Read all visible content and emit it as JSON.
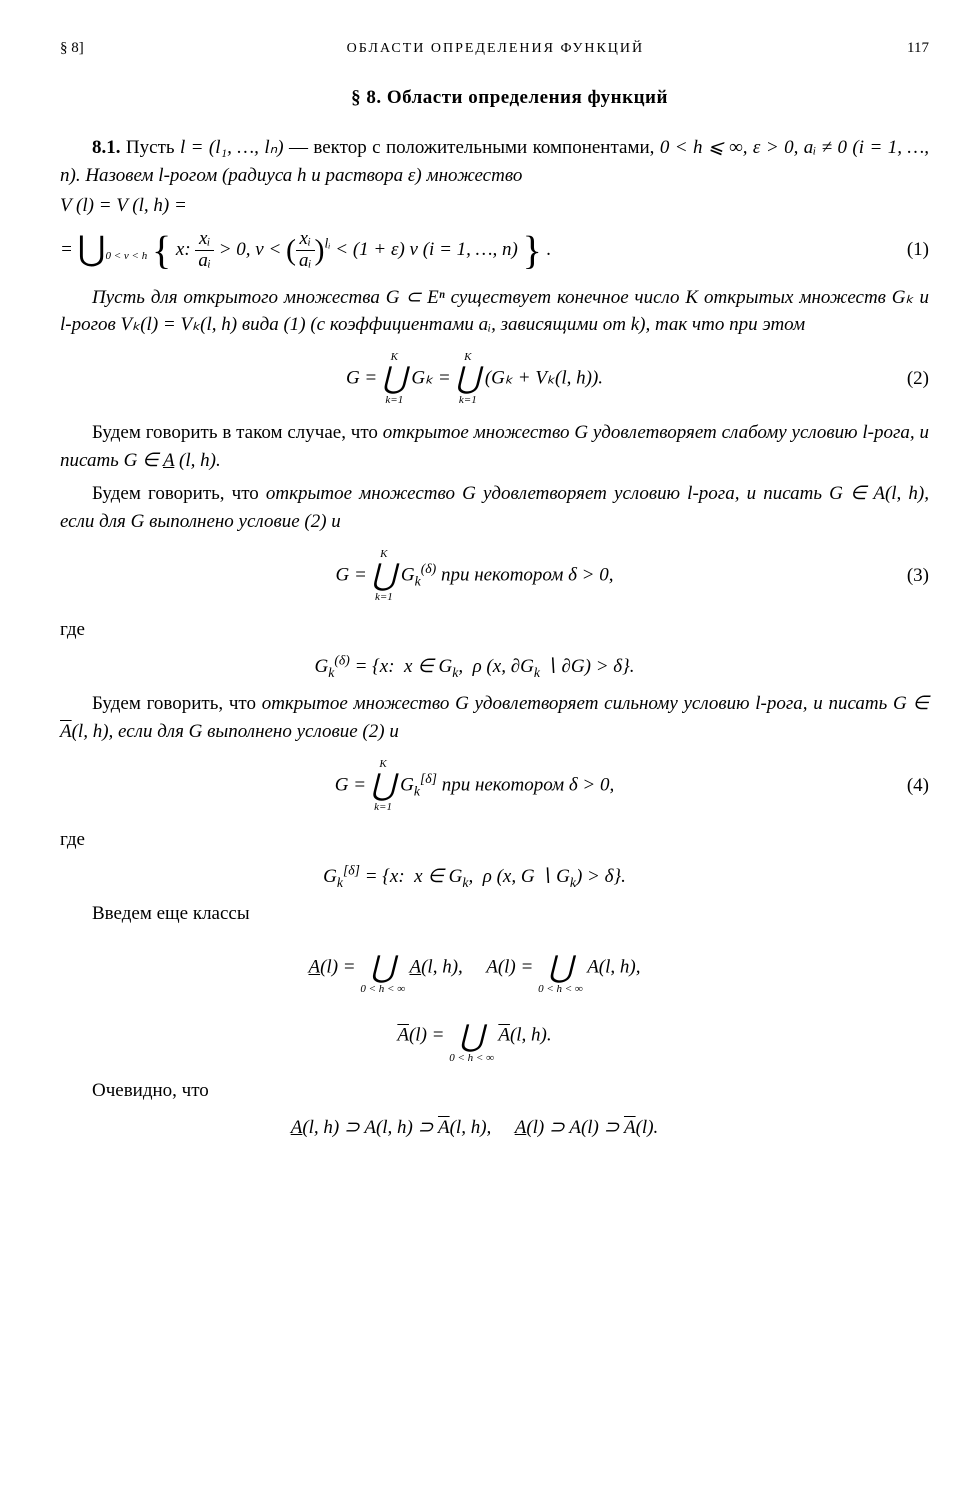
{
  "header": {
    "section_left": "§ 8]",
    "running_title": "ОБЛАСТИ ОПРЕДЕЛЕНИЯ ФУНКЦИЙ",
    "page_number": "117"
  },
  "section_title": "§ 8. Области определения функций",
  "para1": {
    "lead": "8.1.",
    "text1": " Пусть ",
    "eq_l": "l = (l₁, …, lₙ)",
    "text2": " — вектор с положительными компонентами, ",
    "cond": "0 < h ⩽ ∞, ε > 0, aᵢ ≠ 0 (i = 1, …, n).",
    "text3": " Назовем l-рогом (радиуса h и раствора ε) множество"
  },
  "eq1": {
    "line1": "V (l) = V (l, h) =",
    "union_sub": "0 < v < h",
    "inner_pre": "x: ",
    "frac1_num": "xᵢ",
    "frac1_den": "aᵢ",
    "mid1": " > 0, v < ",
    "frac2_num": "xᵢ",
    "frac2_den": "aᵢ",
    "exp": "lᵢ",
    "mid2": " < (1 + ε) v  (i = 1, …, n)",
    "number": "(1)"
  },
  "para2": {
    "text": "Пусть для открытого множества G ⊂ Eⁿ существует конечное число K открытых множеств Gₖ и l-рогов Vₖ(l) = Vₖ(l, h) вида (1) (с коэффициентами aᵢ, зависящими от k), так что при этом"
  },
  "eq2": {
    "lhs": "G = ",
    "sup": "K",
    "sub": "k=1",
    "mid": "Gₖ = ",
    "rhs": "(Gₖ + Vₖ(l, h)).",
    "number": "(2)"
  },
  "para3": {
    "t1": "Будем говорить в таком случае, что ",
    "it1": "открытое множество G удовлетворяет слабому условию l-рога, и писать",
    "t2": " G ∈ ",
    "Aund": "A",
    "t3": " (l, h)."
  },
  "para4": {
    "t1": "Будем говорить, что ",
    "it1": "открытое множество G удовлетворяет условию l-рога, и писать",
    "t2": " G ∈ A(l, h), если для G выполнено условие (2) и"
  },
  "eq3": {
    "lhs": "G = ",
    "sup": "K",
    "sub": "k=1",
    "body": "G",
    "sup_delta": "(δ)",
    "sub_k": "k",
    "tail": "   при некотором   δ > 0,",
    "number": "(3)"
  },
  "para_gde1": "где",
  "eq3b": {
    "content": "G_k^(δ) = {x:  x ∈ Gₖ,  ρ (x, ∂Gₖ ∖ ∂G) > δ}."
  },
  "para5": {
    "t1": "Будем говорить, что ",
    "it1": "открытое множество G удовлетворяет сильному условию l-рога, и писать",
    "t2": " G ∈ ",
    "Abar": "A",
    "t3": "(l, h), если для G выполнено условие (2) и"
  },
  "eq4": {
    "lhs": "G = ",
    "sup": "K",
    "sub": "k=1",
    "body": "G",
    "sup_delta": "[δ]",
    "sub_k": "k",
    "tail": "   при некотором   δ > 0,",
    "number": "(4)"
  },
  "para_gde2": "где",
  "eq4b": {
    "content": "G_k^[δ] = {x:  x ∈ Gₖ,  ρ (x, G ∖ Gₖ) > δ}."
  },
  "para6": "Введем еще классы",
  "eq5": {
    "sub_range": "0 < h < ∞",
    "a_und": "A",
    "a_plain": "A",
    "a_bar": "A",
    "l": "(l)",
    "lh": "(l, h)"
  },
  "para7": "Очевидно, что",
  "eq6": {
    "a_und": "A",
    "a_plain": "A",
    "a_bar": "A",
    "lh": "(l, h)",
    "l": "(l)",
    "sup": "⊃"
  }
}
